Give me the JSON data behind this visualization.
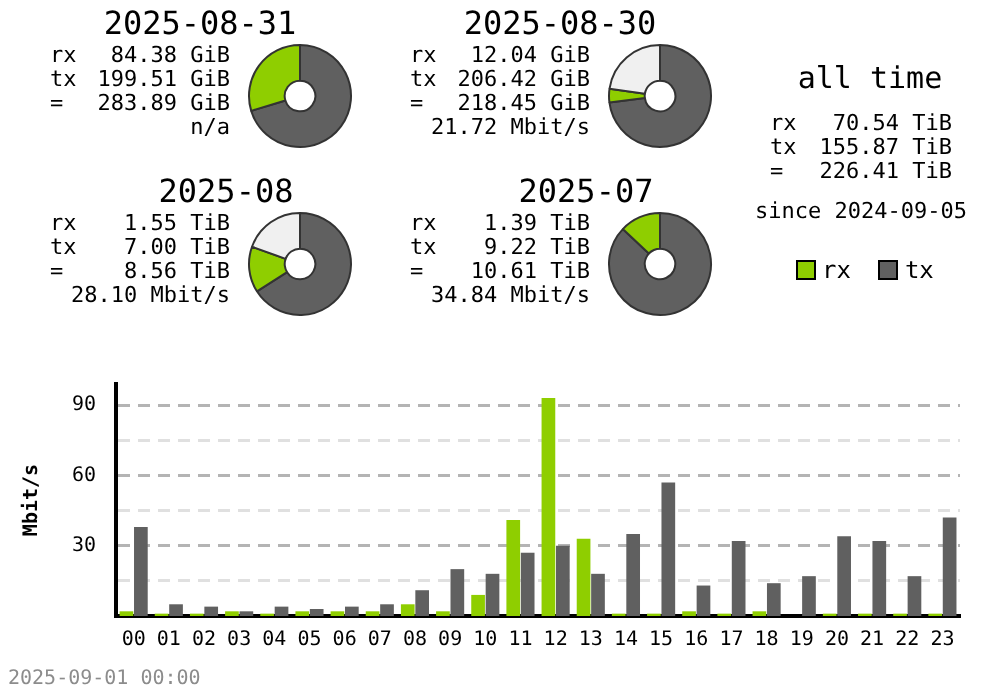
{
  "chart_data": [
    {
      "type": "donut",
      "title": "2025-08-31",
      "categories": [
        null,
        null
      ],
      "values": [
        70.3,
        29.7
      ],
      "colors": [
        "#606060",
        "#8fce00"
      ],
      "annotations": [
        "rx 84.38 GiB",
        "tx 199.51 GiB",
        "= 283.89 GiB",
        "n/a"
      ]
    },
    {
      "type": "donut",
      "title": "2025-08-30",
      "categories": [
        null,
        null,
        null
      ],
      "values": [
        73,
        4.3,
        22.7
      ],
      "colors": [
        "#606060",
        "#8fce00",
        "#f0f0f0"
      ],
      "annotations": [
        "rx 12.04 GiB",
        "tx 206.42 GiB",
        "= 218.45 GiB",
        "21.72 Mbit/s"
      ]
    },
    {
      "type": "other",
      "title": "all time",
      "annotations": [
        "rx 70.54 TiB",
        "tx 155.87 TiB",
        "= 226.41 TiB",
        "since 2024-09-05"
      ]
    },
    {
      "type": "donut",
      "title": "2025-08",
      "categories": [
        null,
        null,
        null
      ],
      "values": [
        66,
        14.5,
        19.5
      ],
      "colors": [
        "#606060",
        "#8fce00",
        "#f0f0f0"
      ],
      "annotations": [
        "rx 1.55 TiB",
        "tx 7.00 TiB",
        "= 8.56 TiB",
        "28.10 Mbit/s"
      ]
    },
    {
      "type": "donut",
      "title": "2025-07",
      "categories": [
        null,
        null
      ],
      "values": [
        87,
        13
      ],
      "colors": [
        "#606060",
        "#8fce00"
      ],
      "annotations": [
        "rx 1.39 TiB",
        "tx 9.22 TiB",
        "= 10.61 TiB",
        "34.84 Mbit/s"
      ]
    },
    {
      "type": "bar",
      "ylabel": "Mbit/s",
      "categories": [
        "00",
        "01",
        "02",
        "03",
        "04",
        "05",
        "06",
        "07",
        "08",
        "09",
        "10",
        "11",
        "12",
        "13",
        "14",
        "15",
        "16",
        "17",
        "18",
        "19",
        "20",
        "21",
        "22",
        "23"
      ],
      "series": [
        {
          "name": "rx",
          "color": "#8fce00",
          "values": [
            2,
            1,
            1,
            2,
            1,
            2,
            2,
            2,
            5,
            2,
            9,
            41,
            93,
            33,
            1,
            1,
            2,
            1,
            2,
            0,
            1,
            1,
            1,
            1
          ]
        },
        {
          "name": "tx",
          "color": "#606060",
          "values": [
            38,
            5,
            4,
            2,
            4,
            3,
            4,
            5,
            11,
            20,
            18,
            27,
            30,
            18,
            35,
            57,
            13,
            32,
            14,
            17,
            34,
            32,
            17,
            42
          ]
        }
      ],
      "ylim": [
        0,
        99
      ],
      "yticks": [
        {
          "value": 15,
          "label": null
        },
        30,
        {
          "value": 45,
          "label": null
        },
        60,
        {
          "value": 75,
          "label": null
        },
        90
      ],
      "grid": "y",
      "legend": "top right",
      "annotations": [
        "2025-09-01 00:00"
      ]
    }
  ]
}
